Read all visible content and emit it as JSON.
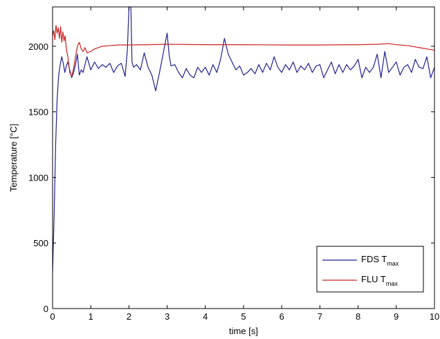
{
  "chart_data": {
    "type": "line",
    "title": "",
    "xlabel": "time [s]",
    "ylabel": "Temperature [°C]",
    "xlim": [
      0,
      10
    ],
    "ylim": [
      0,
      2300
    ],
    "x_ticks": [
      "0",
      "1",
      "2",
      "3",
      "4",
      "5",
      "6",
      "7",
      "8",
      "9",
      "10"
    ],
    "y_ticks": [
      "0",
      "500",
      "1000",
      "1500",
      "2000"
    ],
    "grid": false,
    "legend_position": "bottom-right",
    "series": [
      {
        "name": "FDS T",
        "name_subscript": "max",
        "color": "#1f1f8f",
        "x": [
          0.0,
          0.04,
          0.08,
          0.12,
          0.16,
          0.2,
          0.24,
          0.28,
          0.32,
          0.36,
          0.4,
          0.45,
          0.5,
          0.55,
          0.6,
          0.65,
          0.7,
          0.75,
          0.8,
          0.9,
          1.0,
          1.1,
          1.2,
          1.3,
          1.4,
          1.5,
          1.6,
          1.7,
          1.8,
          1.9,
          1.96,
          2.0,
          2.05,
          2.08,
          2.12,
          2.2,
          2.3,
          2.4,
          2.5,
          2.6,
          2.7,
          2.8,
          2.9,
          3.0,
          3.05,
          3.1,
          3.2,
          3.3,
          3.4,
          3.5,
          3.6,
          3.7,
          3.8,
          3.9,
          4.0,
          4.1,
          4.2,
          4.3,
          4.4,
          4.5,
          4.6,
          4.7,
          4.8,
          4.9,
          5.0,
          5.1,
          5.2,
          5.3,
          5.4,
          5.5,
          5.6,
          5.7,
          5.8,
          5.9,
          6.0,
          6.1,
          6.2,
          6.3,
          6.4,
          6.5,
          6.6,
          6.7,
          6.8,
          6.9,
          7.0,
          7.1,
          7.2,
          7.3,
          7.4,
          7.5,
          7.6,
          7.7,
          7.8,
          7.9,
          8.0,
          8.1,
          8.2,
          8.3,
          8.4,
          8.5,
          8.6,
          8.7,
          8.8,
          8.9,
          9.0,
          9.1,
          9.2,
          9.3,
          9.4,
          9.5,
          9.6,
          9.7,
          9.8,
          9.9,
          10.0
        ],
        "y": [
          280,
          700,
          1250,
          1600,
          1780,
          1860,
          1920,
          1870,
          1800,
          1850,
          1880,
          1820,
          1760,
          1800,
          1860,
          1940,
          1780,
          1820,
          1800,
          1920,
          1820,
          1880,
          1830,
          1860,
          1840,
          1870,
          1800,
          1850,
          1870,
          1770,
          1980,
          2300,
          2300,
          1880,
          1840,
          1860,
          1820,
          1950,
          1840,
          1780,
          1660,
          1800,
          1950,
          2100,
          1940,
          1850,
          1860,
          1800,
          1760,
          1830,
          1780,
          1760,
          1840,
          1800,
          1840,
          1780,
          1860,
          1800,
          1900,
          2060,
          1940,
          1880,
          1820,
          1850,
          1780,
          1800,
          1830,
          1790,
          1860,
          1800,
          1870,
          1820,
          1920,
          1840,
          1800,
          1860,
          1820,
          1880,
          1800,
          1850,
          1820,
          1870,
          1800,
          1850,
          1860,
          1760,
          1820,
          1880,
          1790,
          1860,
          1800,
          1860,
          1820,
          1850,
          1900,
          1760,
          1840,
          1800,
          1840,
          1940,
          1760,
          1960,
          1800,
          1840,
          1880,
          1780,
          1840,
          1860,
          1800,
          1900,
          1840,
          1830,
          1920,
          1760,
          1840
        ]
      },
      {
        "name": "FLU T",
        "name_subscript": "max",
        "color": "#cc2222",
        "x": [
          0.0,
          0.03,
          0.06,
          0.09,
          0.12,
          0.15,
          0.18,
          0.21,
          0.24,
          0.27,
          0.3,
          0.33,
          0.36,
          0.4,
          0.45,
          0.5,
          0.55,
          0.6,
          0.65,
          0.7,
          0.75,
          0.8,
          0.85,
          0.9,
          1.0,
          1.1,
          1.2,
          1.3,
          1.5,
          1.75,
          2.0,
          2.5,
          3.0,
          4.0,
          5.0,
          6.0,
          7.0,
          8.0,
          8.5,
          8.8,
          9.0,
          9.3,
          9.6,
          10.0
        ],
        "y": [
          2080,
          2120,
          2050,
          2160,
          2100,
          2140,
          2060,
          2150,
          2030,
          2110,
          2040,
          2080,
          1980,
          1920,
          1800,
          1770,
          1830,
          1920,
          2000,
          2030,
          1980,
          1960,
          1990,
          1950,
          1960,
          1980,
          1990,
          2000,
          2005,
          2010,
          2010,
          2012,
          2015,
          2012,
          2012,
          2010,
          2010,
          2012,
          2015,
          2020,
          2012,
          2005,
          1990,
          1970
        ]
      }
    ]
  }
}
